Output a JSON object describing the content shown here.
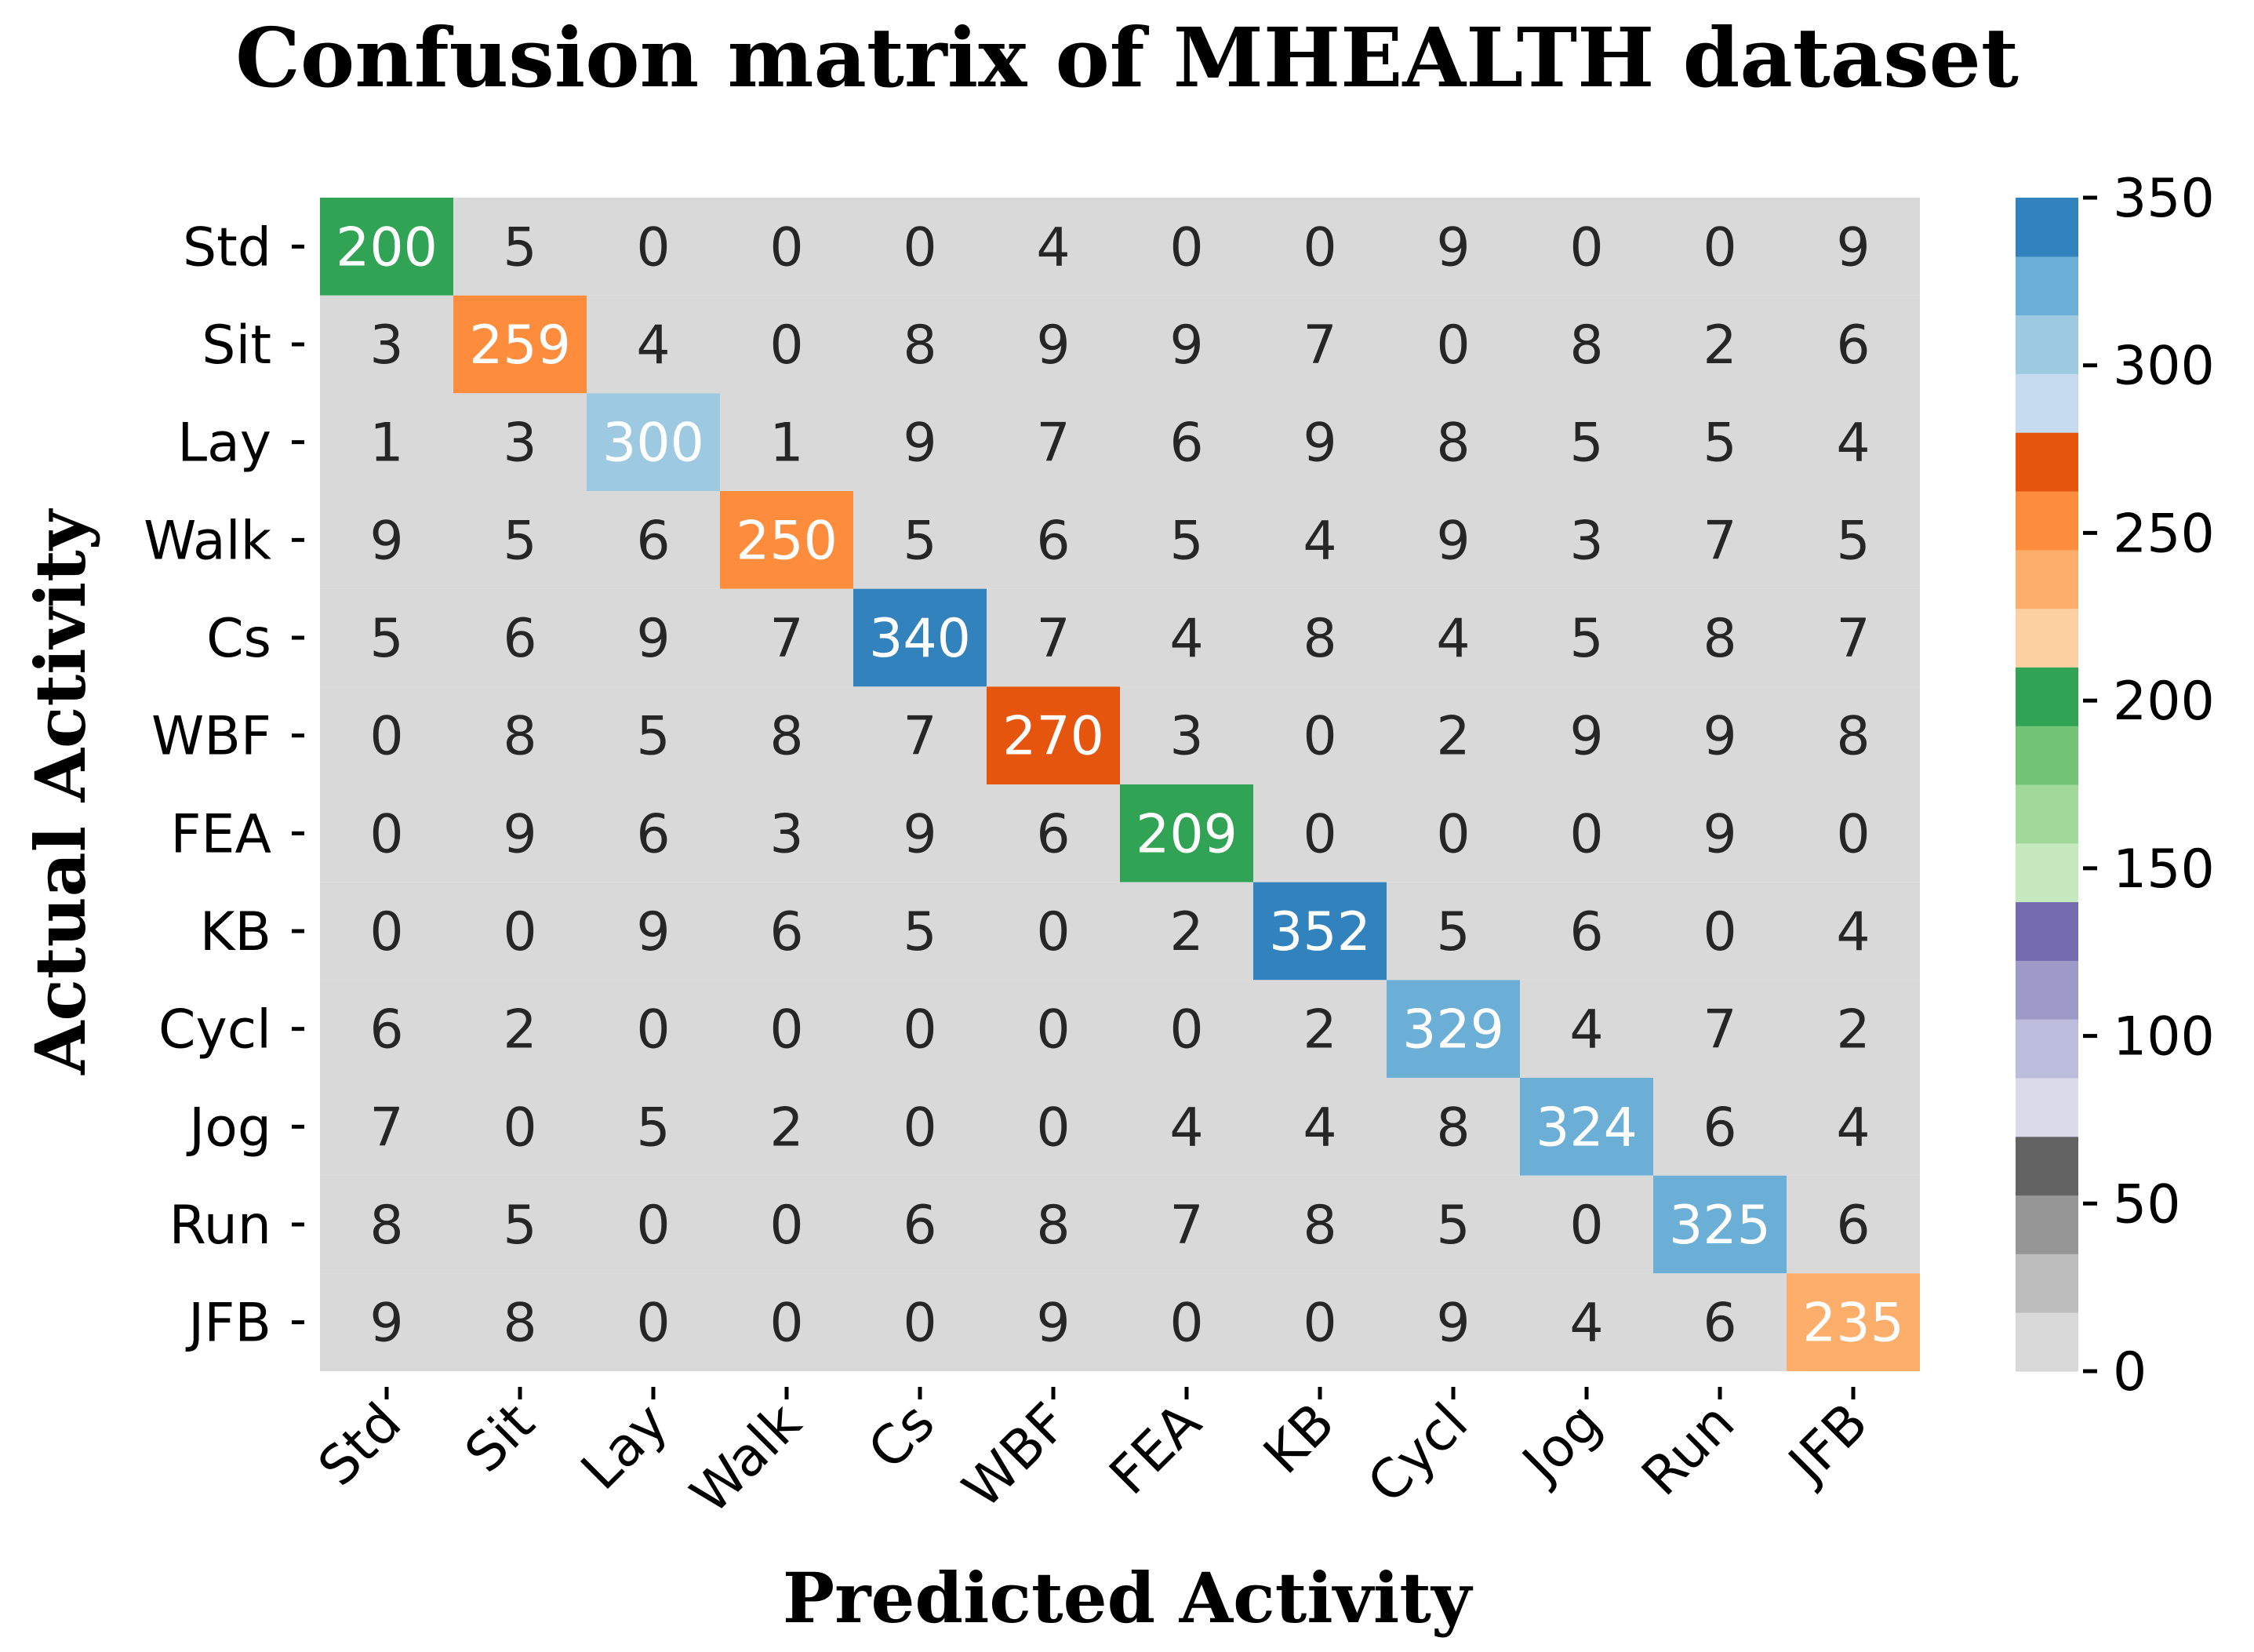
{
  "chart_data": {
    "type": "heatmap",
    "title": "Confusion matrix of MHEALTH dataset",
    "xlabel": "Predicted Activity",
    "ylabel": "Actual Activity",
    "row_labels": [
      "Std",
      "Sit",
      "Lay",
      "Walk",
      "Cs",
      "WBF",
      "FEA",
      "KB",
      "Cycl",
      "Jog",
      "Run",
      "JFB"
    ],
    "col_labels": [
      "Std",
      "Sit",
      "Lay",
      "Walk",
      "Cs",
      "WBF",
      "FEA",
      "KB",
      "Cycl",
      "Jog",
      "Run",
      "JFB"
    ],
    "matrix": [
      [
        200,
        5,
        0,
        0,
        0,
        4,
        0,
        0,
        9,
        0,
        0,
        9
      ],
      [
        3,
        259,
        4,
        0,
        8,
        9,
        9,
        7,
        0,
        8,
        2,
        6
      ],
      [
        1,
        3,
        300,
        1,
        9,
        7,
        6,
        9,
        8,
        5,
        5,
        4
      ],
      [
        9,
        5,
        6,
        250,
        5,
        6,
        5,
        4,
        9,
        3,
        7,
        5
      ],
      [
        5,
        6,
        9,
        7,
        340,
        7,
        4,
        8,
        4,
        5,
        8,
        7
      ],
      [
        0,
        8,
        5,
        8,
        7,
        270,
        3,
        0,
        2,
        9,
        9,
        8
      ],
      [
        0,
        9,
        6,
        3,
        9,
        6,
        209,
        0,
        0,
        0,
        9,
        0
      ],
      [
        0,
        0,
        9,
        6,
        5,
        0,
        2,
        352,
        5,
        6,
        0,
        4
      ],
      [
        6,
        2,
        0,
        0,
        0,
        0,
        0,
        2,
        329,
        4,
        7,
        2
      ],
      [
        7,
        0,
        5,
        2,
        0,
        0,
        4,
        4,
        8,
        324,
        6,
        4
      ],
      [
        8,
        5,
        0,
        0,
        6,
        8,
        7,
        8,
        5,
        0,
        325,
        6
      ],
      [
        9,
        8,
        0,
        0,
        0,
        9,
        0,
        0,
        9,
        4,
        6,
        235
      ]
    ],
    "colorbar": {
      "vmin": 0,
      "vmax": 350,
      "ticks": [
        0,
        50,
        100,
        150,
        200,
        250,
        300,
        350
      ],
      "colors": [
        "#d9d9d9",
        "#bdbdbd",
        "#969696",
        "#636363",
        "#dadaeb",
        "#bcbddc",
        "#9e9ac8",
        "#756bb1",
        "#c7e9c0",
        "#a1d99b",
        "#74c476",
        "#31a354",
        "#fdd0a2",
        "#fdae6b",
        "#fd8d3c",
        "#e6550d",
        "#c6dbef",
        "#9ecae1",
        "#6baed6",
        "#3182bd"
      ],
      "light_text_above": 150
    },
    "grid": true
  }
}
